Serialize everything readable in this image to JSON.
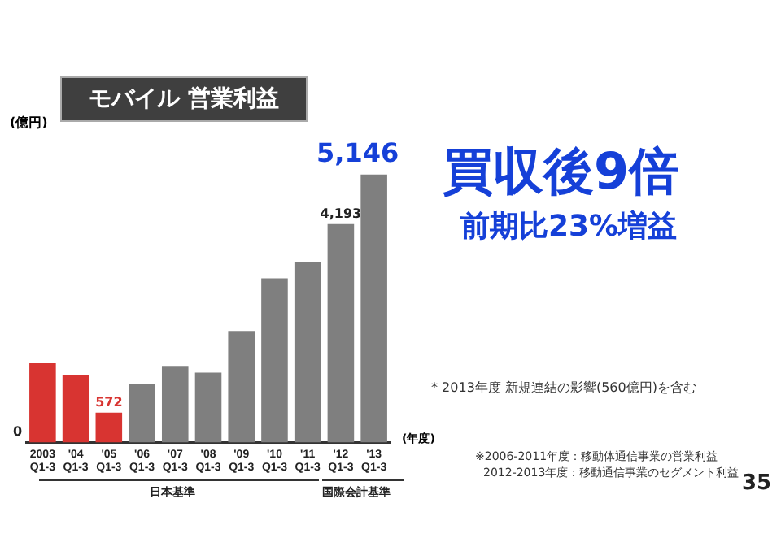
{
  "chart_data": {
    "type": "bar",
    "title": "モバイル 営業利益",
    "ylabel": "(億円)",
    "xlabel": "(年度)",
    "categories": [
      "2003\nQ1-3",
      "'04\nQ1-3",
      "'05\nQ1-3",
      "'06\nQ1-3",
      "'07\nQ1-3",
      "'08\nQ1-3",
      "'09\nQ1-3",
      "'10\nQ1-3",
      "'11\nQ1-3",
      "'12\nQ1-3",
      "'13\nQ1-3"
    ],
    "values": [
      1520,
      1300,
      572,
      1120,
      1470,
      1340,
      2140,
      3150,
      3460,
      4193,
      5146
    ],
    "colors": [
      "#d83431",
      "#d83431",
      "#d83431",
      "#7f7f7f",
      "#7f7f7f",
      "#7f7f7f",
      "#7f7f7f",
      "#7f7f7f",
      "#7f7f7f",
      "#7f7f7f",
      "#7f7f7f"
    ],
    "value_labels": [
      null,
      null,
      "572",
      null,
      null,
      null,
      null,
      null,
      null,
      "4,193",
      "5,146"
    ],
    "grid": false,
    "legend": false,
    "annotations": [
      "0",
      "買収後9倍",
      "前期比23%増益",
      "* 2013年度 新規連結の影響(560億円)を含む",
      "日本基準",
      "国際会計基準",
      "※2006-2011年度：移動体通信事業の営業利益",
      "2012-2013年度：移動通信事業のセグメント利益",
      "35"
    ]
  }
}
